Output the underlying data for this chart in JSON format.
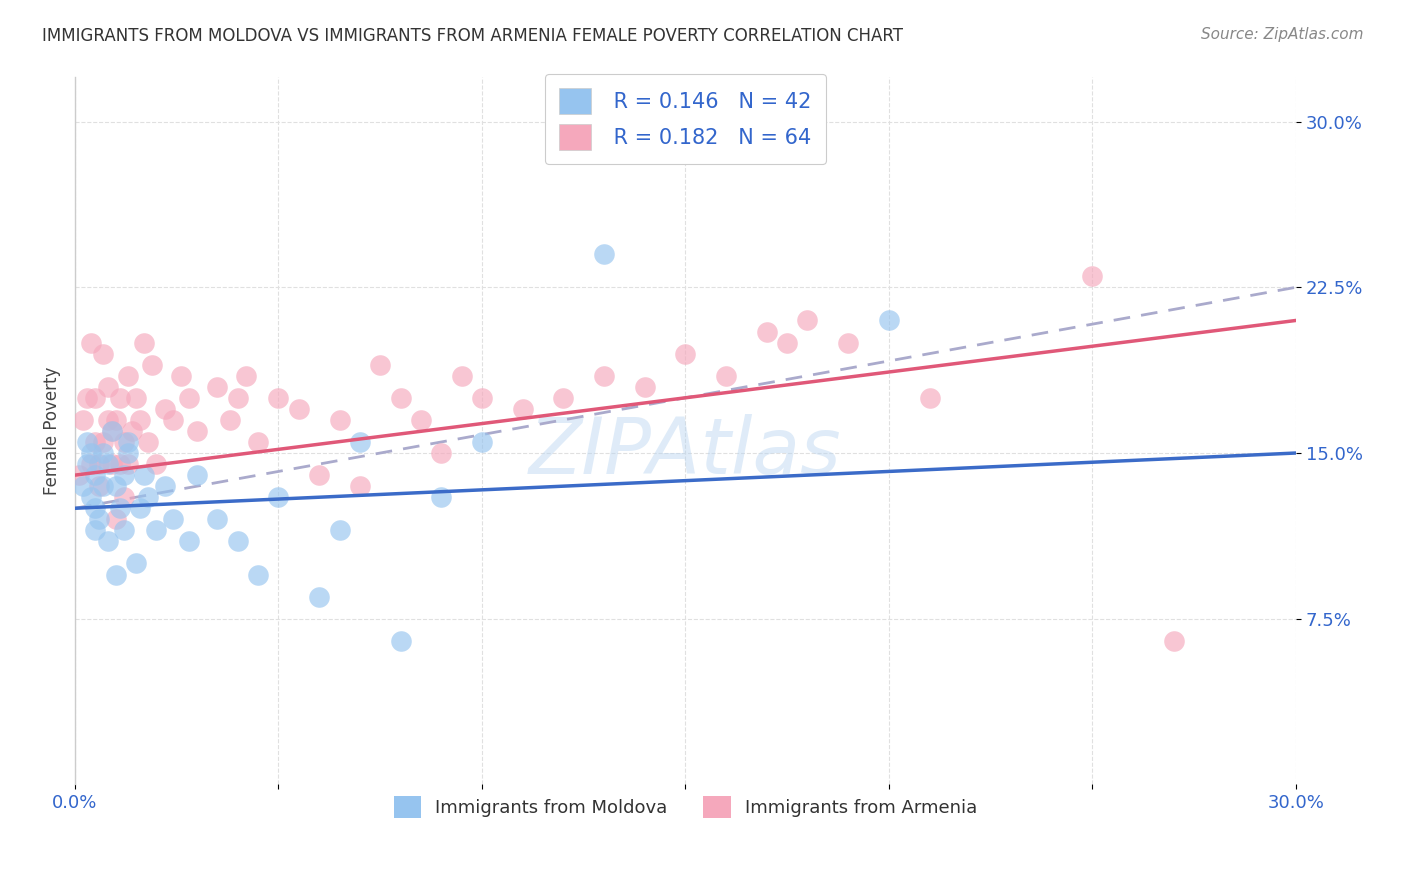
{
  "title": "IMMIGRANTS FROM MOLDOVA VS IMMIGRANTS FROM ARMENIA FEMALE POVERTY CORRELATION CHART",
  "source": "Source: ZipAtlas.com",
  "xlabel": "",
  "ylabel": "Female Poverty",
  "xlim": [
    0.0,
    0.3
  ],
  "ylim": [
    0.0,
    0.32
  ],
  "xtick_pos": [
    0.0,
    0.05,
    0.1,
    0.15,
    0.2,
    0.25,
    0.3
  ],
  "xtick_labels": [
    "0.0%",
    "",
    "",
    "",
    "",
    "",
    "30.0%"
  ],
  "ytick_positions": [
    0.075,
    0.15,
    0.225,
    0.3
  ],
  "ytick_labels": [
    "7.5%",
    "15.0%",
    "22.5%",
    "30.0%"
  ],
  "moldova_color": "#96C4EF",
  "armenia_color": "#F5A8BC",
  "moldova_line_color": "#3B6BC8",
  "armenia_line_color": "#E05878",
  "trend_line_color": "#AAAACC",
  "R_moldova": 0.146,
  "N_moldova": 42,
  "R_armenia": 0.182,
  "N_armenia": 64,
  "moldova_x": [
    0.002,
    0.003,
    0.003,
    0.004,
    0.004,
    0.005,
    0.005,
    0.005,
    0.006,
    0.007,
    0.007,
    0.008,
    0.008,
    0.009,
    0.01,
    0.01,
    0.011,
    0.012,
    0.012,
    0.013,
    0.013,
    0.015,
    0.016,
    0.017,
    0.018,
    0.02,
    0.022,
    0.024,
    0.028,
    0.03,
    0.035,
    0.04,
    0.045,
    0.05,
    0.06,
    0.065,
    0.07,
    0.08,
    0.09,
    0.1,
    0.13,
    0.2
  ],
  "moldova_y": [
    0.135,
    0.155,
    0.145,
    0.13,
    0.15,
    0.115,
    0.125,
    0.14,
    0.12,
    0.135,
    0.15,
    0.11,
    0.145,
    0.16,
    0.095,
    0.135,
    0.125,
    0.115,
    0.14,
    0.15,
    0.155,
    0.1,
    0.125,
    0.14,
    0.13,
    0.115,
    0.135,
    0.12,
    0.11,
    0.14,
    0.12,
    0.11,
    0.095,
    0.13,
    0.085,
    0.115,
    0.155,
    0.065,
    0.13,
    0.155,
    0.24,
    0.21
  ],
  "armenia_x": [
    0.001,
    0.002,
    0.003,
    0.004,
    0.004,
    0.005,
    0.005,
    0.006,
    0.006,
    0.007,
    0.007,
    0.008,
    0.008,
    0.009,
    0.009,
    0.01,
    0.01,
    0.011,
    0.011,
    0.012,
    0.012,
    0.013,
    0.013,
    0.014,
    0.015,
    0.016,
    0.017,
    0.018,
    0.019,
    0.02,
    0.022,
    0.024,
    0.026,
    0.028,
    0.03,
    0.035,
    0.038,
    0.04,
    0.042,
    0.045,
    0.05,
    0.055,
    0.06,
    0.065,
    0.07,
    0.075,
    0.08,
    0.085,
    0.09,
    0.095,
    0.1,
    0.11,
    0.12,
    0.13,
    0.14,
    0.15,
    0.16,
    0.17,
    0.175,
    0.18,
    0.19,
    0.21,
    0.25,
    0.27
  ],
  "armenia_y": [
    0.14,
    0.165,
    0.175,
    0.145,
    0.2,
    0.155,
    0.175,
    0.145,
    0.135,
    0.155,
    0.195,
    0.165,
    0.18,
    0.145,
    0.16,
    0.12,
    0.165,
    0.145,
    0.175,
    0.13,
    0.155,
    0.145,
    0.185,
    0.16,
    0.175,
    0.165,
    0.2,
    0.155,
    0.19,
    0.145,
    0.17,
    0.165,
    0.185,
    0.175,
    0.16,
    0.18,
    0.165,
    0.175,
    0.185,
    0.155,
    0.175,
    0.17,
    0.14,
    0.165,
    0.135,
    0.19,
    0.175,
    0.165,
    0.15,
    0.185,
    0.175,
    0.17,
    0.175,
    0.185,
    0.18,
    0.195,
    0.185,
    0.205,
    0.2,
    0.21,
    0.2,
    0.175,
    0.23,
    0.065
  ],
  "moldova_line": [
    0.125,
    0.15
  ],
  "armenia_line": [
    0.14,
    0.21
  ],
  "trend_line": [
    0.125,
    0.225
  ],
  "legend_label_moldova": "Immigrants from Moldova",
  "legend_label_armenia": "Immigrants from Armenia",
  "legend_text_color": "#3366CC",
  "background_color": "#FFFFFF",
  "grid_color": "#E0E0E0"
}
